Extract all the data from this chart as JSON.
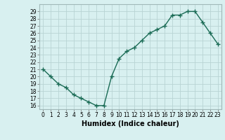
{
  "xlabel": "Humidex (Indice chaleur)",
  "ylabel": "",
  "x": [
    0,
    1,
    2,
    3,
    4,
    5,
    6,
    7,
    8,
    9,
    10,
    11,
    12,
    13,
    14,
    15,
    16,
    17,
    18,
    19,
    20,
    21,
    22,
    23
  ],
  "y": [
    21,
    20,
    19,
    18.5,
    17.5,
    17,
    16.5,
    16,
    16,
    20,
    22.5,
    23.5,
    24,
    25,
    26,
    26.5,
    27,
    28.5,
    28.5,
    29,
    29,
    27.5,
    26,
    24.5
  ],
  "ylim": [
    15.5,
    30
  ],
  "yticks": [
    16,
    17,
    18,
    19,
    20,
    21,
    22,
    23,
    24,
    25,
    26,
    27,
    28,
    29
  ],
  "xticks": [
    0,
    1,
    2,
    3,
    4,
    5,
    6,
    7,
    8,
    9,
    10,
    11,
    12,
    13,
    14,
    15,
    16,
    17,
    18,
    19,
    20,
    21,
    22,
    23
  ],
  "xlim": [
    -0.5,
    23.5
  ],
  "line_color": "#1a6b55",
  "marker": "+",
  "bg_color": "#d8f0f0",
  "grid_color": "#b8d4d4",
  "tick_label_fontsize": 5.5,
  "xlabel_fontsize": 7,
  "line_width": 1.0,
  "marker_size": 4,
  "marker_edge_width": 1.0
}
